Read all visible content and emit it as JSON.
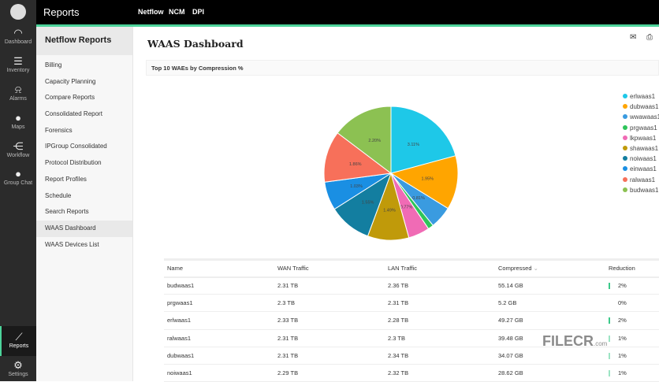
{
  "rail": {
    "items": [
      {
        "label": "Dashboard",
        "icon": "gauge-icon"
      },
      {
        "label": "Inventory",
        "icon": "inventory-icon"
      },
      {
        "label": "Alarms",
        "icon": "alarm-icon"
      },
      {
        "label": "Maps",
        "icon": "map-pin-icon"
      },
      {
        "label": "Workflow",
        "icon": "workflow-icon"
      },
      {
        "label": "Group Chat",
        "icon": "chat-icon"
      }
    ],
    "bottom": [
      {
        "label": "Reports",
        "icon": "chart-icon"
      },
      {
        "label": "Settings",
        "icon": "gear-icon"
      }
    ]
  },
  "topbar": {
    "title": "Reports",
    "nav": [
      "Netflow",
      "NCM",
      "DPI"
    ]
  },
  "submenu": {
    "title": "Netflow Reports",
    "items": [
      "Billing",
      "Capacity Planning",
      "Compare Reports",
      "Consolidated Report",
      "Forensics",
      "IPGroup Consolidated",
      "Protocol Distribution",
      "Report Profiles",
      "Schedule",
      "Search Reports",
      "WAAS Dashboard",
      "WAAS Devices List"
    ],
    "active": "WAAS Dashboard"
  },
  "page": {
    "title": "WAAS Dashboard",
    "panel_title": "Top 10 WAEs by Compression %"
  },
  "chart_data": {
    "type": "pie",
    "title": "Top 10 WAEs by Compression %",
    "legend_position": "right",
    "slices": [
      {
        "name": "erlwaas1",
        "value": 3.11,
        "label": "3.11%",
        "color": "#1ec8e8"
      },
      {
        "name": "dubwaas1",
        "value": 1.95,
        "label": "1.95%",
        "color": "#ffa500"
      },
      {
        "name": "wwawaas1",
        "value": 0.81,
        "label": "0.81%",
        "color": "#3a9be0"
      },
      {
        "name": "prgwaas1",
        "value": 0.2,
        "label": "",
        "color": "#2ec45a"
      },
      {
        "name": "lkpwaas1",
        "value": 0.77,
        "label": "0.77%",
        "color": "#f06bb5"
      },
      {
        "name": "shawaas1",
        "value": 1.49,
        "label": "1.49%",
        "color": "#c09a0a"
      },
      {
        "name": "noiwaas1",
        "value": 1.55,
        "label": "1.55%",
        "color": "#137ea0"
      },
      {
        "name": "einwaas1",
        "value": 1.03,
        "label": "1.03%",
        "color": "#1a8fe3"
      },
      {
        "name": "ralwaas1",
        "value": 1.86,
        "label": "1.86%",
        "color": "#f7705a"
      },
      {
        "name": "budwaas1",
        "value": 2.2,
        "label": "2.20%",
        "color": "#8cc152"
      }
    ]
  },
  "table": {
    "columns": [
      "Name",
      "WAN Traffic",
      "LAN Traffic",
      "Compressed",
      "Reduction"
    ],
    "rows": [
      [
        "budwaas1",
        "2.31 TB",
        "2.36 TB",
        "55.14 GB",
        "2%"
      ],
      [
        "prgwaas1",
        "2.3 TB",
        "2.31 TB",
        "5.2 GB",
        "0%"
      ],
      [
        "erlwaas1",
        "2.33 TB",
        "2.28 TB",
        "49.27 GB",
        "2%"
      ],
      [
        "ralwaas1",
        "2.31 TB",
        "2.3 TB",
        "39.48 GB",
        "1%"
      ],
      [
        "dubwaas1",
        "2.31 TB",
        "2.34 TB",
        "34.07 GB",
        "1%"
      ],
      [
        "noiwaas1",
        "2.29 TB",
        "2.32 TB",
        "28.62 GB",
        "1%"
      ]
    ]
  },
  "watermark": {
    "text": "FILECR",
    "suffix": ".com"
  }
}
